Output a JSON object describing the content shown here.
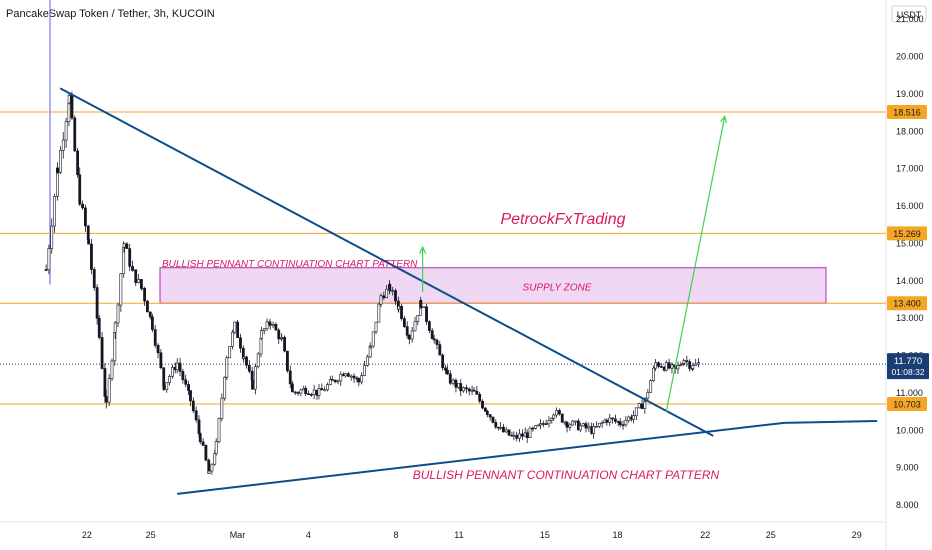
{
  "header": {
    "symbol_title": "PancakeSwap Token / Tether, 3h, KUCOIN"
  },
  "price_scale": {
    "currency": "USDT"
  },
  "colors": {
    "up": "#131722",
    "down": "#131722",
    "trendline": "#0c4d8c",
    "horizontal_level": "#f5a623",
    "supply_fill": "#ebc9ef",
    "supply_border": "#b026b8",
    "pattern_text": "#d81b60",
    "arrow": "#3ed44a",
    "current_price_bg": "#1a3e73",
    "vline": "#5b5be6"
  },
  "annotations": {
    "brand": "PetrockFxTrading",
    "pattern_top": "BULLISH PENNANT CONTINUATION CHART PATTERN",
    "pattern_bottom": "BULLISH PENNANT CONTINUATION CHART PATTERN",
    "supply_zone": "SUPPLY ZONE"
  },
  "current_price": {
    "value": "11.770",
    "countdown": "01:08:32"
  },
  "chart_data": {
    "type": "candlestick",
    "x_ticks": [
      "22",
      "25",
      "Mar",
      "4",
      "8",
      "11",
      "15",
      "18",
      "22",
      "25",
      "29"
    ],
    "y_ticks": [
      "21.000",
      "20.000",
      "19.000",
      "18.000",
      "17.000",
      "16.000",
      "15.000",
      "14.000",
      "13.000",
      "12.000",
      "11.000",
      "10.000",
      "9.000",
      "8.000"
    ],
    "ylim": [
      7.6,
      21.3
    ],
    "horizontal_levels": [
      "18.516",
      "15.269",
      "13.400",
      "10.703"
    ],
    "supply_zone": {
      "low": 13.4,
      "high": 14.35
    },
    "trendlines": [
      {
        "name": "upper",
        "from": [
          0.068,
          19.15
        ],
        "to": [
          0.805,
          9.85
        ]
      },
      {
        "name": "lower",
        "from": [
          0.2,
          8.3
        ],
        "to": [
          0.885,
          10.2
        ]
      }
    ],
    "projection_arrows": [
      {
        "from": [
          0.752,
          10.5
        ],
        "to": [
          0.818,
          18.4
        ]
      },
      {
        "from": [
          0.477,
          13.7
        ],
        "to": [
          0.477,
          14.9
        ]
      }
    ],
    "candles_sample_waypoints": [
      [
        0.052,
        14.3
      ],
      [
        0.065,
        17.0
      ],
      [
        0.078,
        18.9
      ],
      [
        0.09,
        16.2
      ],
      [
        0.1,
        15.0
      ],
      [
        0.112,
        12.5
      ],
      [
        0.12,
        10.6
      ],
      [
        0.13,
        12.8
      ],
      [
        0.14,
        15.0
      ],
      [
        0.15,
        14.2
      ],
      [
        0.16,
        13.8
      ],
      [
        0.172,
        12.8
      ],
      [
        0.185,
        11.2
      ],
      [
        0.2,
        11.8
      ],
      [
        0.215,
        10.8
      ],
      [
        0.226,
        9.8
      ],
      [
        0.236,
        8.8
      ],
      [
        0.244,
        9.6
      ],
      [
        0.256,
        12.0
      ],
      [
        0.265,
        12.8
      ],
      [
        0.275,
        12.0
      ],
      [
        0.285,
        11.2
      ],
      [
        0.295,
        12.6
      ],
      [
        0.305,
        12.9
      ],
      [
        0.318,
        12.4
      ],
      [
        0.33,
        11.0
      ],
      [
        0.345,
        11.1
      ],
      [
        0.36,
        11.0
      ],
      [
        0.375,
        11.3
      ],
      [
        0.39,
        11.6
      ],
      [
        0.405,
        11.3
      ],
      [
        0.418,
        12.2
      ],
      [
        0.43,
        13.6
      ],
      [
        0.44,
        13.8
      ],
      [
        0.45,
        13.3
      ],
      [
        0.462,
        12.5
      ],
      [
        0.475,
        13.4
      ],
      [
        0.49,
        12.4
      ],
      [
        0.505,
        11.4
      ],
      [
        0.52,
        11.1
      ],
      [
        0.535,
        11.0
      ],
      [
        0.55,
        10.5
      ],
      [
        0.565,
        10.0
      ],
      [
        0.58,
        9.8
      ],
      [
        0.595,
        9.9
      ],
      [
        0.61,
        10.1
      ],
      [
        0.625,
        10.5
      ],
      [
        0.64,
        10.2
      ],
      [
        0.655,
        10.1
      ],
      [
        0.67,
        10.0
      ],
      [
        0.685,
        10.3
      ],
      [
        0.7,
        10.2
      ],
      [
        0.715,
        10.4
      ],
      [
        0.728,
        10.8
      ],
      [
        0.74,
        11.8
      ],
      [
        0.752,
        11.7
      ],
      [
        0.762,
        11.6
      ],
      [
        0.772,
        11.9
      ],
      [
        0.782,
        11.7
      ],
      [
        0.79,
        11.8
      ]
    ]
  }
}
